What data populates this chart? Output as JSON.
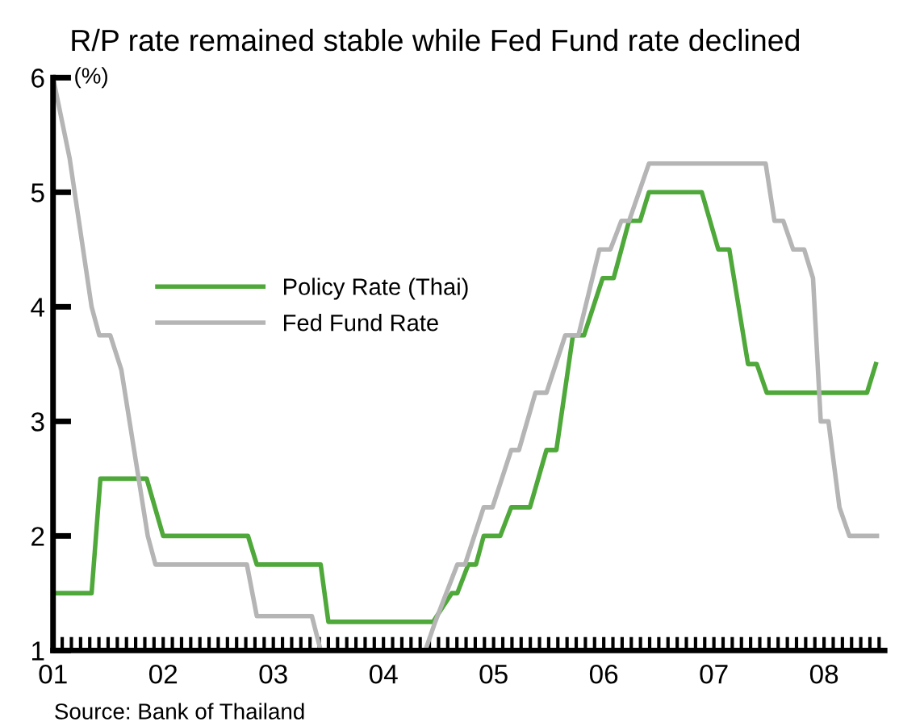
{
  "chart_data": {
    "type": "line",
    "title": "R/P rate remained stable while Fed Fund rate declined",
    "ylabel": "(%)",
    "annotations": [
      "Source: Bank of Thailand"
    ],
    "series": [
      {
        "name": "Policy Rate (Thai)",
        "color": "#4fa83a",
        "x": [
          2001,
          2001.35,
          2001.43,
          2001.85,
          2002.0,
          2002.77,
          2002.85,
          2003.43,
          2003.5,
          2004.45,
          2004.62,
          2004.67,
          2004.77,
          2004.84,
          2004.91,
          2005.06,
          2005.16,
          2005.33,
          2005.48,
          2005.57,
          2005.72,
          2005.82,
          2005.99,
          2006.09,
          2006.23,
          2006.33,
          2006.41,
          2006.89,
          2007.04,
          2007.14,
          2007.31,
          2007.39,
          2007.48,
          2008.39,
          2008.47
        ],
        "values": [
          1.5,
          1.5,
          2.5,
          2.5,
          2.0,
          2.0,
          1.75,
          1.75,
          1.25,
          1.25,
          1.5,
          1.5,
          1.75,
          1.75,
          2.0,
          2.0,
          2.25,
          2.25,
          2.75,
          2.75,
          3.75,
          3.75,
          4.25,
          4.25,
          4.75,
          4.75,
          5.0,
          5.0,
          4.5,
          4.5,
          3.5,
          3.5,
          3.25,
          3.25,
          3.5
        ]
      },
      {
        "name": "Fed Fund Rate",
        "color": "#b5b5b5",
        "x": [
          2001,
          2001.15,
          2001.35,
          2001.42,
          2001.52,
          2001.62,
          2001.86,
          2001.93,
          2002.76,
          2002.85,
          2003.35,
          2003.43,
          2004.38,
          2004.47,
          2004.67,
          2004.74,
          2004.91,
          2004.99,
          2005.16,
          2005.23,
          2005.38,
          2005.48,
          2005.65,
          2005.77,
          2005.96,
          2006.06,
          2006.16,
          2006.23,
          2006.41,
          2007.47,
          2007.55,
          2007.63,
          2007.72,
          2007.82,
          2007.9,
          2007.97,
          2008.04,
          2008.14,
          2008.23,
          2008.48
        ],
        "values": [
          6.0,
          5.3,
          4.0,
          3.75,
          3.75,
          3.45,
          2.0,
          1.75,
          1.75,
          1.3,
          1.3,
          1.0,
          1.0,
          1.25,
          1.75,
          1.75,
          2.25,
          2.25,
          2.75,
          2.75,
          3.25,
          3.25,
          3.75,
          3.75,
          4.5,
          4.5,
          4.75,
          4.75,
          5.25,
          5.25,
          4.75,
          4.75,
          4.5,
          4.5,
          4.25,
          3.0,
          3.0,
          2.25,
          2.0,
          2.0
        ]
      }
    ],
    "xlim": [
      2001,
      2008.55
    ],
    "xticks": [
      {
        "value": 2001,
        "label": "01"
      },
      {
        "value": 2002,
        "label": "02"
      },
      {
        "value": 2003,
        "label": "03"
      },
      {
        "value": 2004,
        "label": "04"
      },
      {
        "value": 2005,
        "label": "05"
      },
      {
        "value": 2006,
        "label": "06"
      },
      {
        "value": 2007,
        "label": "07"
      },
      {
        "value": 2008,
        "label": "08"
      }
    ],
    "ylim": [
      1,
      6
    ],
    "yticks": [
      1,
      2,
      3,
      4,
      5,
      6
    ],
    "grid": false,
    "legend": "center",
    "marker": "none",
    "line_style": "solid"
  }
}
